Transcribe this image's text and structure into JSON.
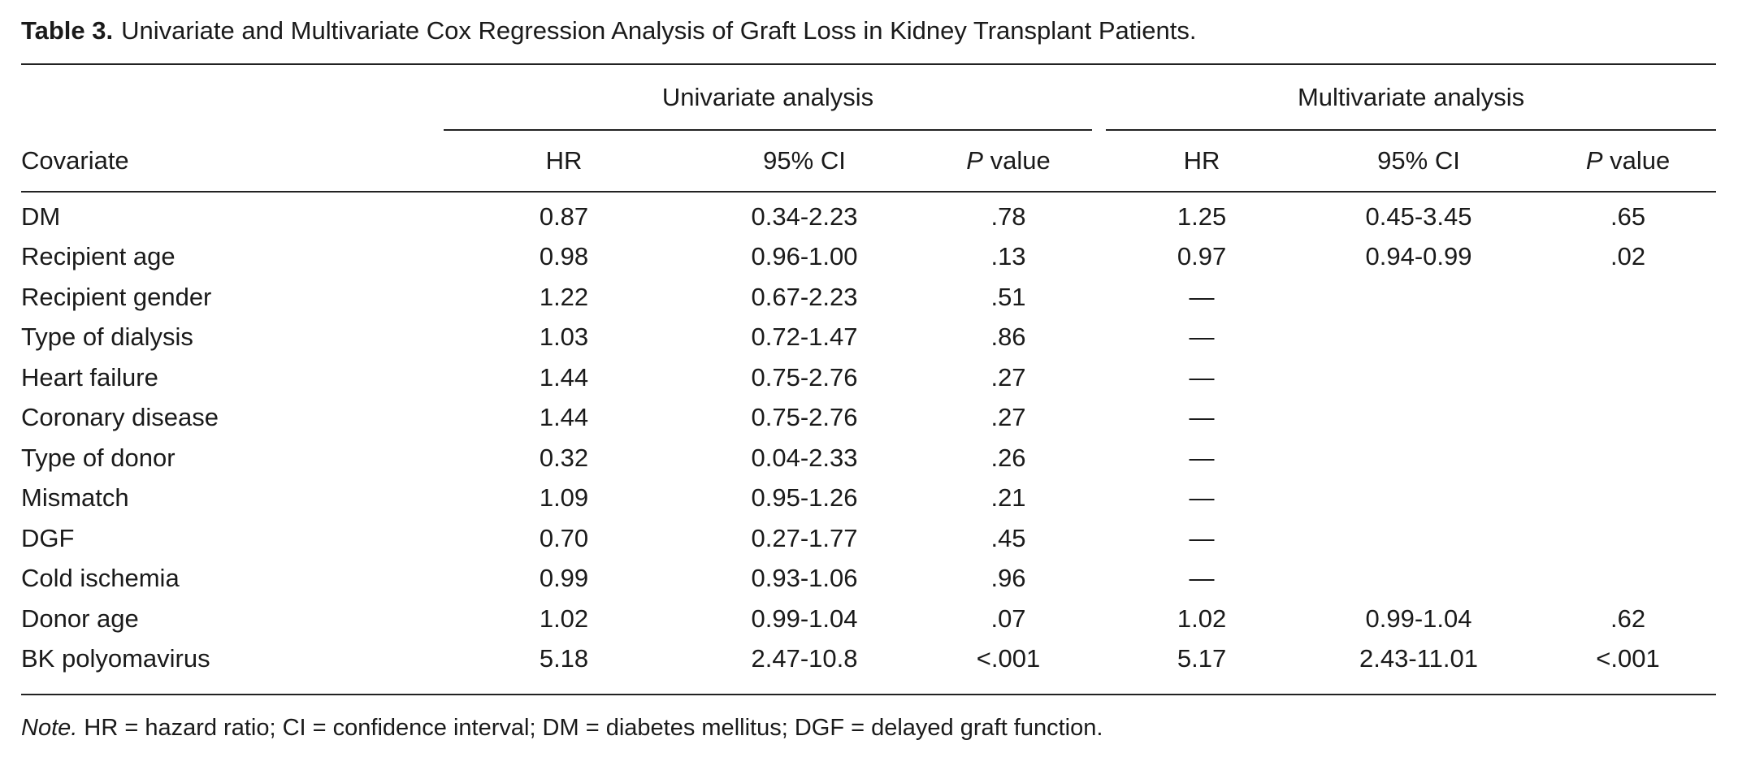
{
  "title": {
    "label": "Table 3.",
    "text": "Univariate and Multivariate Cox Regression Analysis of Graft Loss in Kidney Transplant Patients."
  },
  "groups": {
    "univariate": "Univariate analysis",
    "multivariate": "Multivariate analysis"
  },
  "columns": {
    "covariate": "Covariate",
    "hr": "HR",
    "ci": "95% CI",
    "p_italic": "P",
    "p_rest": " value"
  },
  "rows": [
    {
      "covariate": "DM",
      "uni_hr": "0.87",
      "uni_ci": "0.34-2.23",
      "uni_p": ".78",
      "multi_hr": "1.25",
      "multi_ci": "0.45-3.45",
      "multi_p": ".65"
    },
    {
      "covariate": "Recipient age",
      "uni_hr": "0.98",
      "uni_ci": "0.96-1.00",
      "uni_p": ".13",
      "multi_hr": "0.97",
      "multi_ci": "0.94-0.99",
      "multi_p": ".02"
    },
    {
      "covariate": "Recipient gender",
      "uni_hr": "1.22",
      "uni_ci": "0.67-2.23",
      "uni_p": ".51",
      "multi_hr": "—",
      "multi_ci": "",
      "multi_p": ""
    },
    {
      "covariate": "Type of dialysis",
      "uni_hr": "1.03",
      "uni_ci": "0.72-1.47",
      "uni_p": ".86",
      "multi_hr": "—",
      "multi_ci": "",
      "multi_p": ""
    },
    {
      "covariate": "Heart failure",
      "uni_hr": "1.44",
      "uni_ci": "0.75-2.76",
      "uni_p": ".27",
      "multi_hr": "—",
      "multi_ci": "",
      "multi_p": ""
    },
    {
      "covariate": "Coronary disease",
      "uni_hr": "1.44",
      "uni_ci": "0.75-2.76",
      "uni_p": ".27",
      "multi_hr": "—",
      "multi_ci": "",
      "multi_p": ""
    },
    {
      "covariate": "Type of donor",
      "uni_hr": "0.32",
      "uni_ci": "0.04-2.33",
      "uni_p": ".26",
      "multi_hr": "—",
      "multi_ci": "",
      "multi_p": ""
    },
    {
      "covariate": "Mismatch",
      "uni_hr": "1.09",
      "uni_ci": "0.95-1.26",
      "uni_p": ".21",
      "multi_hr": "—",
      "multi_ci": "",
      "multi_p": ""
    },
    {
      "covariate": "DGF",
      "uni_hr": "0.70",
      "uni_ci": "0.27-1.77",
      "uni_p": ".45",
      "multi_hr": "—",
      "multi_ci": "",
      "multi_p": ""
    },
    {
      "covariate": "Cold ischemia",
      "uni_hr": "0.99",
      "uni_ci": "0.93-1.06",
      "uni_p": ".96",
      "multi_hr": "—",
      "multi_ci": "",
      "multi_p": ""
    },
    {
      "covariate": "Donor age",
      "uni_hr": "1.02",
      "uni_ci": "0.99-1.04",
      "uni_p": ".07",
      "multi_hr": "1.02",
      "multi_ci": "0.99-1.04",
      "multi_p": ".62"
    },
    {
      "covariate": "BK polyomavirus",
      "uni_hr": "5.18",
      "uni_ci": "2.47-10.8",
      "uni_p": "<.001",
      "multi_hr": "5.17",
      "multi_ci": "2.43-11.01",
      "multi_p": "<.001"
    }
  ],
  "note": {
    "label": "Note.",
    "text": " HR = hazard ratio; CI = confidence interval; DM = diabetes mellitus; DGF = delayed graft function."
  }
}
